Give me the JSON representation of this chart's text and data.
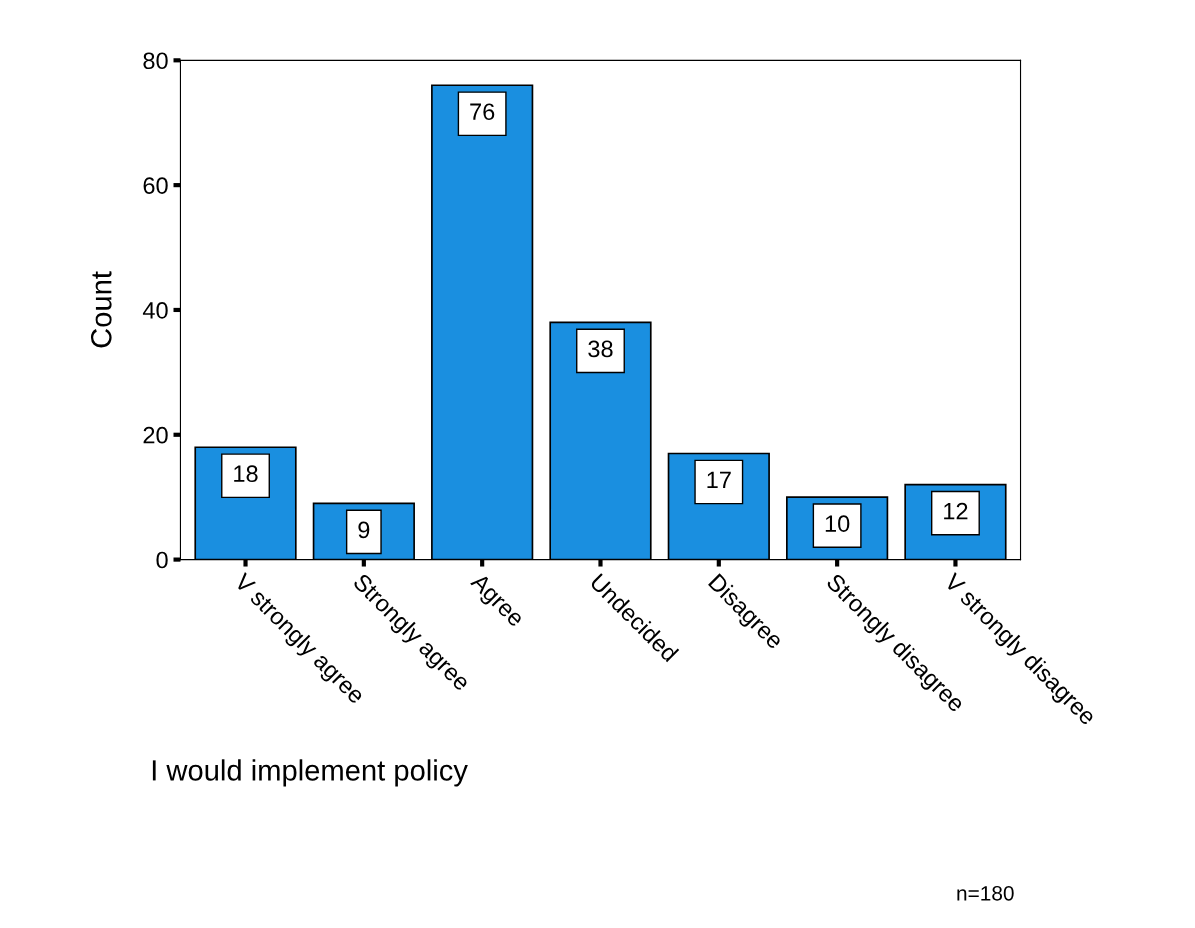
{
  "chart_data": {
    "type": "bar",
    "categories": [
      "V strongly agree",
      "Strongly agree",
      "Agree",
      "Undecided",
      "Disagree",
      "Strongly disagree",
      "V strongly disagree"
    ],
    "values": [
      18,
      9,
      76,
      38,
      17,
      10,
      12
    ],
    "color": "#1a8fe0",
    "ylabel": "Count",
    "xlabel": "I would implement policy",
    "ylim": [
      0,
      80
    ],
    "yticks": [
      0,
      20,
      40,
      60,
      80
    ],
    "data_labels": true,
    "grid": false,
    "legend": false,
    "annotations": [
      "n=180"
    ]
  }
}
